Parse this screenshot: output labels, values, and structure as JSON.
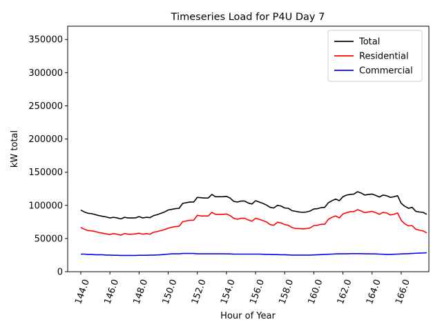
{
  "chart_data": {
    "type": "line",
    "title": "Timeseries Load for P4U   Day 7",
    "xlabel": "Hour of Year",
    "ylabel": "kW total",
    "xlim": [
      143.1,
      167.9
    ],
    "ylim": [
      0,
      370000
    ],
    "xticks": [
      144.0,
      146.0,
      148.0,
      150.0,
      152.0,
      154.0,
      156.0,
      158.0,
      160.0,
      162.0,
      164.0,
      166.0
    ],
    "xtick_labels": [
      "144.0",
      "146.0",
      "148.0",
      "150.0",
      "152.0",
      "154.0",
      "156.0",
      "158.0",
      "160.0",
      "162.0",
      "164.0",
      "166.0"
    ],
    "yticks": [
      0,
      50000,
      100000,
      150000,
      200000,
      250000,
      300000,
      350000
    ],
    "ytick_labels": [
      "0",
      "50000",
      "100000",
      "150000",
      "200000",
      "250000",
      "300000",
      "350000"
    ],
    "legend_location": "top-right",
    "x_start": 144.0,
    "x_step": 0.25,
    "series": [
      {
        "name": "Total",
        "color": "#000000",
        "values": [
          93000,
          90000,
          88000,
          87500,
          86000,
          84500,
          83500,
          82500,
          81000,
          82000,
          81000,
          79500,
          82000,
          81000,
          81000,
          81000,
          83000,
          81000,
          82000,
          81500,
          84500,
          86000,
          88000,
          90000,
          93000,
          94000,
          95000,
          95500,
          103000,
          104000,
          105000,
          105000,
          112000,
          111500,
          111000,
          111000,
          116500,
          113000,
          113000,
          113000,
          113500,
          111000,
          106000,
          105000,
          106500,
          106500,
          103500,
          102000,
          107000,
          105000,
          103000,
          100500,
          97000,
          96000,
          100000,
          99000,
          96000,
          95500,
          92000,
          91000,
          90000,
          89500,
          90000,
          91500,
          94500,
          95000,
          96500,
          97000,
          104000,
          107000,
          109500,
          107000,
          113000,
          115500,
          116500,
          117000,
          120500,
          118500,
          115500,
          116500,
          117000,
          115000,
          112500,
          115500,
          114500,
          112000,
          113000,
          114500,
          103000,
          98500,
          95500,
          97000,
          91000,
          90000,
          89500,
          86500
        ]
      },
      {
        "name": "Residential",
        "color": "#ff0000",
        "values": [
          66500,
          64000,
          62000,
          61500,
          60500,
          59000,
          58000,
          57000,
          56000,
          57500,
          56500,
          55000,
          57500,
          56500,
          56500,
          57000,
          58000,
          56500,
          57500,
          56500,
          59500,
          60500,
          62000,
          63500,
          65500,
          67000,
          68000,
          68500,
          75500,
          76500,
          77500,
          77500,
          85000,
          84000,
          84000,
          84000,
          89500,
          86500,
          86500,
          86500,
          87000,
          84500,
          80500,
          79000,
          80500,
          80500,
          78000,
          76000,
          80500,
          79000,
          77000,
          75000,
          71000,
          70000,
          74500,
          73500,
          71000,
          70000,
          66500,
          65000,
          65000,
          64500,
          65000,
          66000,
          69500,
          70000,
          71500,
          71500,
          79000,
          82000,
          84000,
          81000,
          87000,
          89000,
          90500,
          90500,
          93500,
          91500,
          89000,
          90000,
          91000,
          89000,
          86500,
          89500,
          88500,
          85500,
          86500,
          88500,
          77500,
          72000,
          69000,
          69500,
          64000,
          62500,
          61500,
          58500
        ]
      },
      {
        "name": "Commercial",
        "color": "#0000ff",
        "values": [
          26500,
          26500,
          26000,
          26000,
          25500,
          25500,
          25500,
          25000,
          25000,
          24800,
          24700,
          24500,
          24500,
          24500,
          24500,
          24500,
          24800,
          24800,
          24800,
          25000,
          25000,
          25200,
          25500,
          26000,
          26500,
          27000,
          27000,
          27000,
          27500,
          27500,
          27500,
          27500,
          27000,
          27000,
          27000,
          27000,
          27000,
          27000,
          27000,
          27000,
          26800,
          26800,
          26500,
          26500,
          26500,
          26500,
          26500,
          26500,
          26500,
          26500,
          26300,
          26000,
          26000,
          25800,
          25800,
          25500,
          25500,
          25300,
          25000,
          25000,
          25000,
          25000,
          25000,
          25000,
          25300,
          25500,
          25800,
          26000,
          26300,
          26500,
          26800,
          27000,
          27000,
          27000,
          27200,
          27200,
          27200,
          27200,
          27000,
          27000,
          26800,
          26800,
          26500,
          26300,
          26000,
          26000,
          26300,
          26500,
          26800,
          27000,
          27200,
          27500,
          27800,
          28000,
          28200,
          28500
        ]
      }
    ]
  }
}
